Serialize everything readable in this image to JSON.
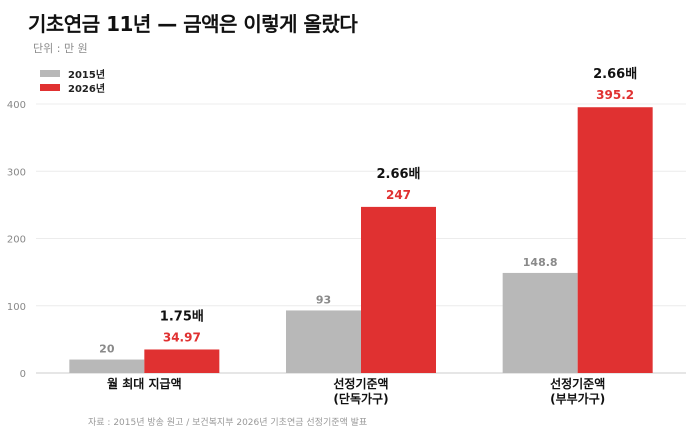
{
  "title": "기초연금 11년 — 금액은 이렇게 올랐다",
  "unit": "단위 : 만 원",
  "source": "자료 : 2015년 방송 원고 / 보건복지부 2026년 기초연금 선정기준액 발표",
  "legend": [
    {
      "name": "2015년",
      "color": "#b8b8b8"
    },
    {
      "name": "2026년",
      "color": "#e03131"
    }
  ],
  "chart_data": {
    "type": "bar",
    "categories": [
      [
        "월 최대 지급액"
      ],
      [
        "선정기준액",
        "(단독가구)"
      ],
      [
        "선정기준액",
        "(부부가구)"
      ]
    ],
    "series": [
      {
        "name": "2015년",
        "values": [
          20,
          93,
          148.8
        ],
        "labels": [
          "20",
          "93",
          "148.8"
        ],
        "color": "#b8b8b8"
      },
      {
        "name": "2026년",
        "values": [
          34.97,
          247,
          395.2
        ],
        "labels": [
          "34.97",
          "247",
          "395.2"
        ],
        "color": "#e03131"
      }
    ],
    "ratios": [
      "1.75배",
      "2.66배",
      "2.66배"
    ],
    "yticks": [
      0,
      100,
      200,
      300,
      400
    ],
    "ylim": [
      0,
      400
    ],
    "grid": true,
    "legend_position": "top-left"
  }
}
